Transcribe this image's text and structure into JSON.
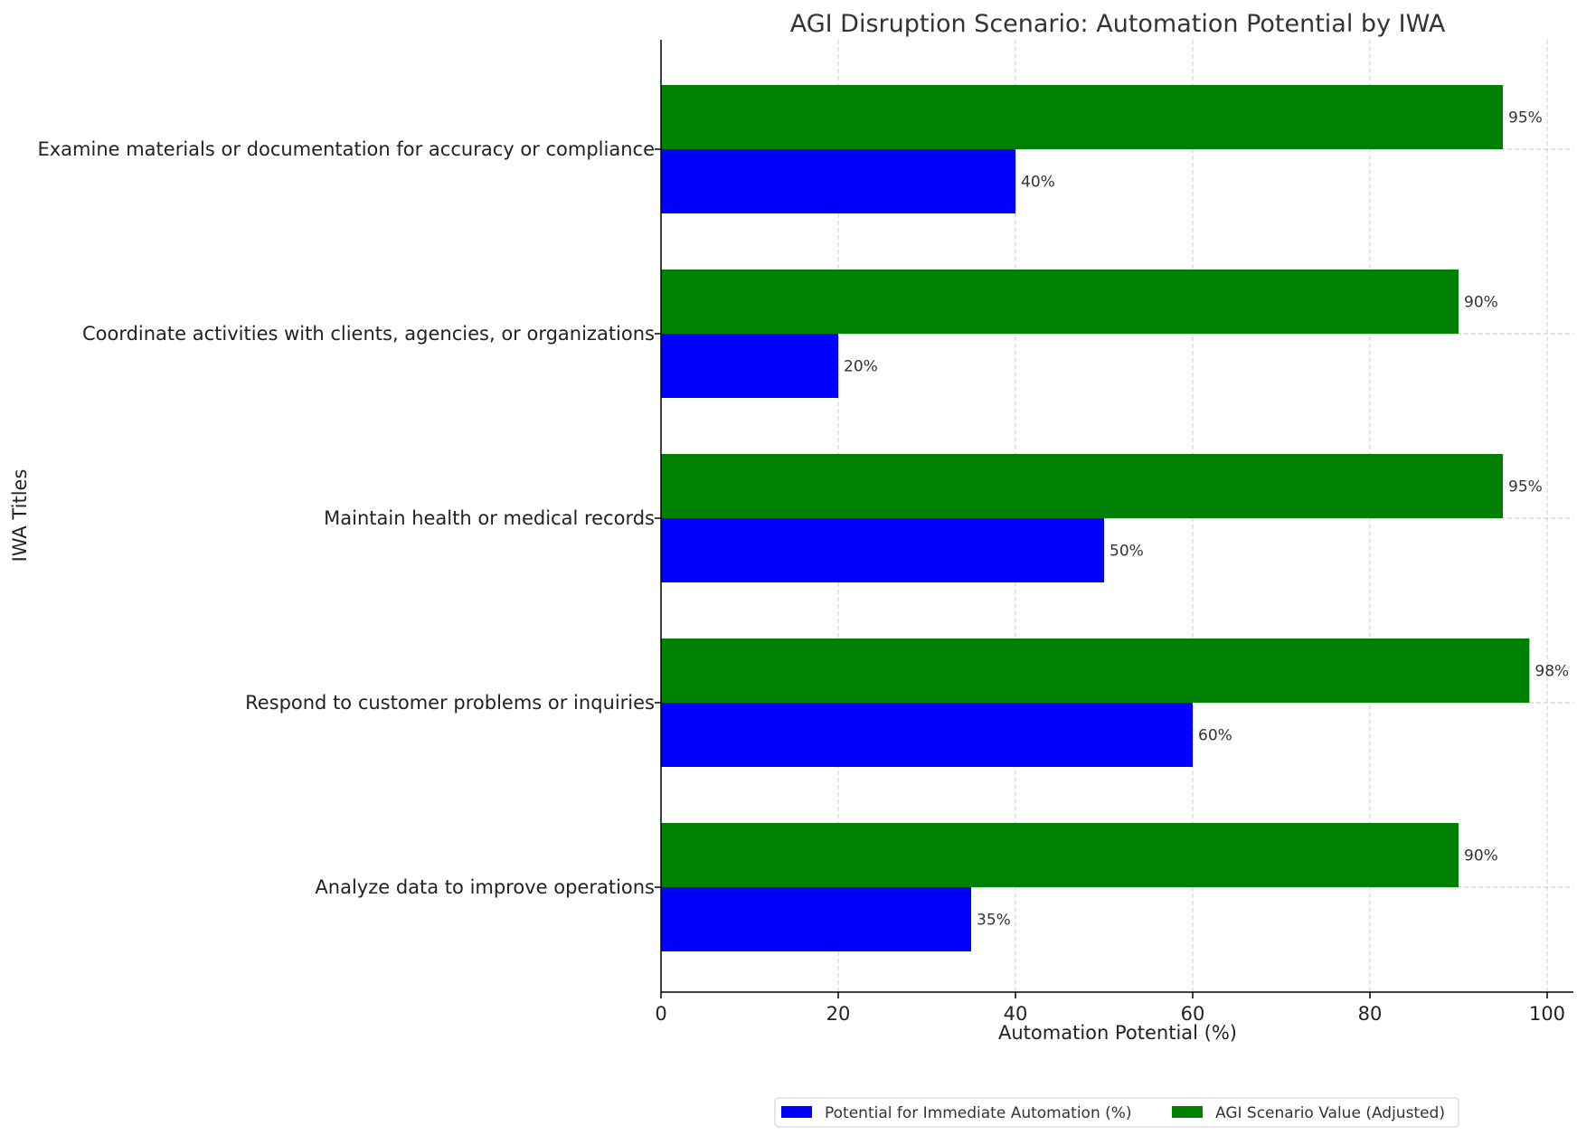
{
  "chart_data": {
    "type": "bar",
    "orientation": "horizontal",
    "title": "AGI Disruption Scenario: Automation Potential by IWA",
    "xlabel": "Automation Potential (%)",
    "ylabel": "IWA Titles",
    "xlim": [
      0,
      103
    ],
    "xticks": [
      0,
      20,
      40,
      60,
      80,
      100
    ],
    "grid": true,
    "legend_position": "bottom-center",
    "categories": [
      "Examine materials or documentation for accuracy or compliance",
      "Coordinate activities with clients, agencies, or organizations",
      "Maintain health or medical records",
      "Respond to customer problems or inquiries",
      "Analyze data to improve operations"
    ],
    "series": [
      {
        "name": "Potential for Immediate Automation (%)",
        "color": "#0000ff",
        "values": [
          40,
          20,
          50,
          60,
          35
        ],
        "labels": [
          "40%",
          "20%",
          "50%",
          "60%",
          "35%"
        ]
      },
      {
        "name": "AGI Scenario Value (Adjusted)",
        "color": "#008000",
        "values": [
          95,
          90,
          95,
          98,
          90
        ],
        "labels": [
          "95%",
          "90%",
          "95%",
          "98%",
          "90%"
        ]
      }
    ]
  }
}
